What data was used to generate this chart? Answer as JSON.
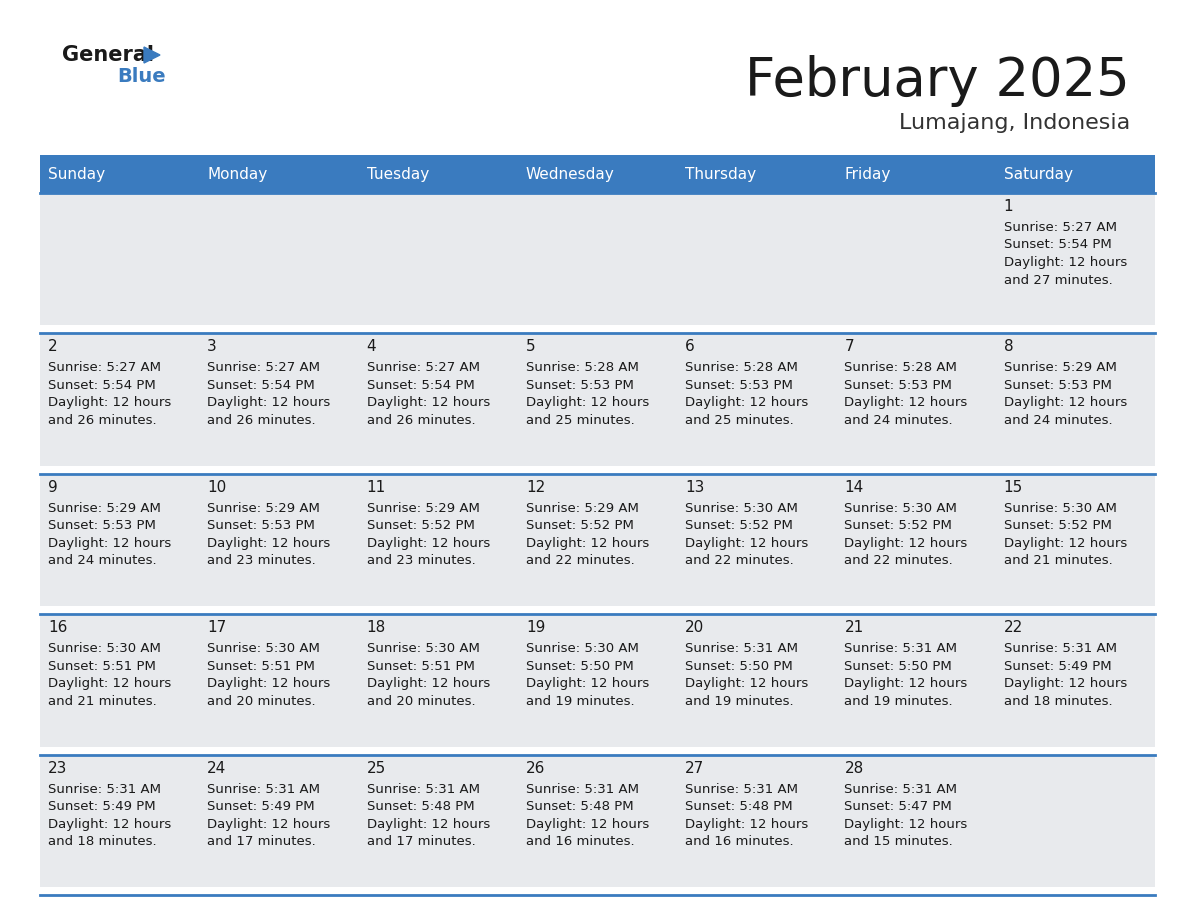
{
  "title": "February 2025",
  "subtitle": "Lumajang, Indonesia",
  "days_of_week": [
    "Sunday",
    "Monday",
    "Tuesday",
    "Wednesday",
    "Thursday",
    "Friday",
    "Saturday"
  ],
  "header_bg": "#3a7bbf",
  "header_text_color": "#ffffff",
  "cell_bg": "#e8eaed",
  "cell_bg_empty": "#ffffff",
  "day_number_color": "#1a1a1a",
  "info_text_color": "#1a1a1a",
  "border_color": "#3a7bbf",
  "title_color": "#1a1a1a",
  "subtitle_color": "#333333",
  "row_gap_color": "#ffffff",
  "calendar_data": [
    [
      {
        "day": null,
        "sunrise": null,
        "sunset": null,
        "daylight": null
      },
      {
        "day": null,
        "sunrise": null,
        "sunset": null,
        "daylight": null
      },
      {
        "day": null,
        "sunrise": null,
        "sunset": null,
        "daylight": null
      },
      {
        "day": null,
        "sunrise": null,
        "sunset": null,
        "daylight": null
      },
      {
        "day": null,
        "sunrise": null,
        "sunset": null,
        "daylight": null
      },
      {
        "day": null,
        "sunrise": null,
        "sunset": null,
        "daylight": null
      },
      {
        "day": 1,
        "sunrise": "5:27 AM",
        "sunset": "5:54 PM",
        "daylight": "12 hours and 27 minutes."
      }
    ],
    [
      {
        "day": 2,
        "sunrise": "5:27 AM",
        "sunset": "5:54 PM",
        "daylight": "12 hours and 26 minutes."
      },
      {
        "day": 3,
        "sunrise": "5:27 AM",
        "sunset": "5:54 PM",
        "daylight": "12 hours and 26 minutes."
      },
      {
        "day": 4,
        "sunrise": "5:27 AM",
        "sunset": "5:54 PM",
        "daylight": "12 hours and 26 minutes."
      },
      {
        "day": 5,
        "sunrise": "5:28 AM",
        "sunset": "5:53 PM",
        "daylight": "12 hours and 25 minutes."
      },
      {
        "day": 6,
        "sunrise": "5:28 AM",
        "sunset": "5:53 PM",
        "daylight": "12 hours and 25 minutes."
      },
      {
        "day": 7,
        "sunrise": "5:28 AM",
        "sunset": "5:53 PM",
        "daylight": "12 hours and 24 minutes."
      },
      {
        "day": 8,
        "sunrise": "5:29 AM",
        "sunset": "5:53 PM",
        "daylight": "12 hours and 24 minutes."
      }
    ],
    [
      {
        "day": 9,
        "sunrise": "5:29 AM",
        "sunset": "5:53 PM",
        "daylight": "12 hours and 24 minutes."
      },
      {
        "day": 10,
        "sunrise": "5:29 AM",
        "sunset": "5:53 PM",
        "daylight": "12 hours and 23 minutes."
      },
      {
        "day": 11,
        "sunrise": "5:29 AM",
        "sunset": "5:52 PM",
        "daylight": "12 hours and 23 minutes."
      },
      {
        "day": 12,
        "sunrise": "5:29 AM",
        "sunset": "5:52 PM",
        "daylight": "12 hours and 22 minutes."
      },
      {
        "day": 13,
        "sunrise": "5:30 AM",
        "sunset": "5:52 PM",
        "daylight": "12 hours and 22 minutes."
      },
      {
        "day": 14,
        "sunrise": "5:30 AM",
        "sunset": "5:52 PM",
        "daylight": "12 hours and 22 minutes."
      },
      {
        "day": 15,
        "sunrise": "5:30 AM",
        "sunset": "5:52 PM",
        "daylight": "12 hours and 21 minutes."
      }
    ],
    [
      {
        "day": 16,
        "sunrise": "5:30 AM",
        "sunset": "5:51 PM",
        "daylight": "12 hours and 21 minutes."
      },
      {
        "day": 17,
        "sunrise": "5:30 AM",
        "sunset": "5:51 PM",
        "daylight": "12 hours and 20 minutes."
      },
      {
        "day": 18,
        "sunrise": "5:30 AM",
        "sunset": "5:51 PM",
        "daylight": "12 hours and 20 minutes."
      },
      {
        "day": 19,
        "sunrise": "5:30 AM",
        "sunset": "5:50 PM",
        "daylight": "12 hours and 19 minutes."
      },
      {
        "day": 20,
        "sunrise": "5:31 AM",
        "sunset": "5:50 PM",
        "daylight": "12 hours and 19 minutes."
      },
      {
        "day": 21,
        "sunrise": "5:31 AM",
        "sunset": "5:50 PM",
        "daylight": "12 hours and 19 minutes."
      },
      {
        "day": 22,
        "sunrise": "5:31 AM",
        "sunset": "5:49 PM",
        "daylight": "12 hours and 18 minutes."
      }
    ],
    [
      {
        "day": 23,
        "sunrise": "5:31 AM",
        "sunset": "5:49 PM",
        "daylight": "12 hours and 18 minutes."
      },
      {
        "day": 24,
        "sunrise": "5:31 AM",
        "sunset": "5:49 PM",
        "daylight": "12 hours and 17 minutes."
      },
      {
        "day": 25,
        "sunrise": "5:31 AM",
        "sunset": "5:48 PM",
        "daylight": "12 hours and 17 minutes."
      },
      {
        "day": 26,
        "sunrise": "5:31 AM",
        "sunset": "5:48 PM",
        "daylight": "12 hours and 16 minutes."
      },
      {
        "day": 27,
        "sunrise": "5:31 AM",
        "sunset": "5:48 PM",
        "daylight": "12 hours and 16 minutes."
      },
      {
        "day": 28,
        "sunrise": "5:31 AM",
        "sunset": "5:47 PM",
        "daylight": "12 hours and 15 minutes."
      },
      {
        "day": null,
        "sunrise": null,
        "sunset": null,
        "daylight": null
      }
    ]
  ]
}
